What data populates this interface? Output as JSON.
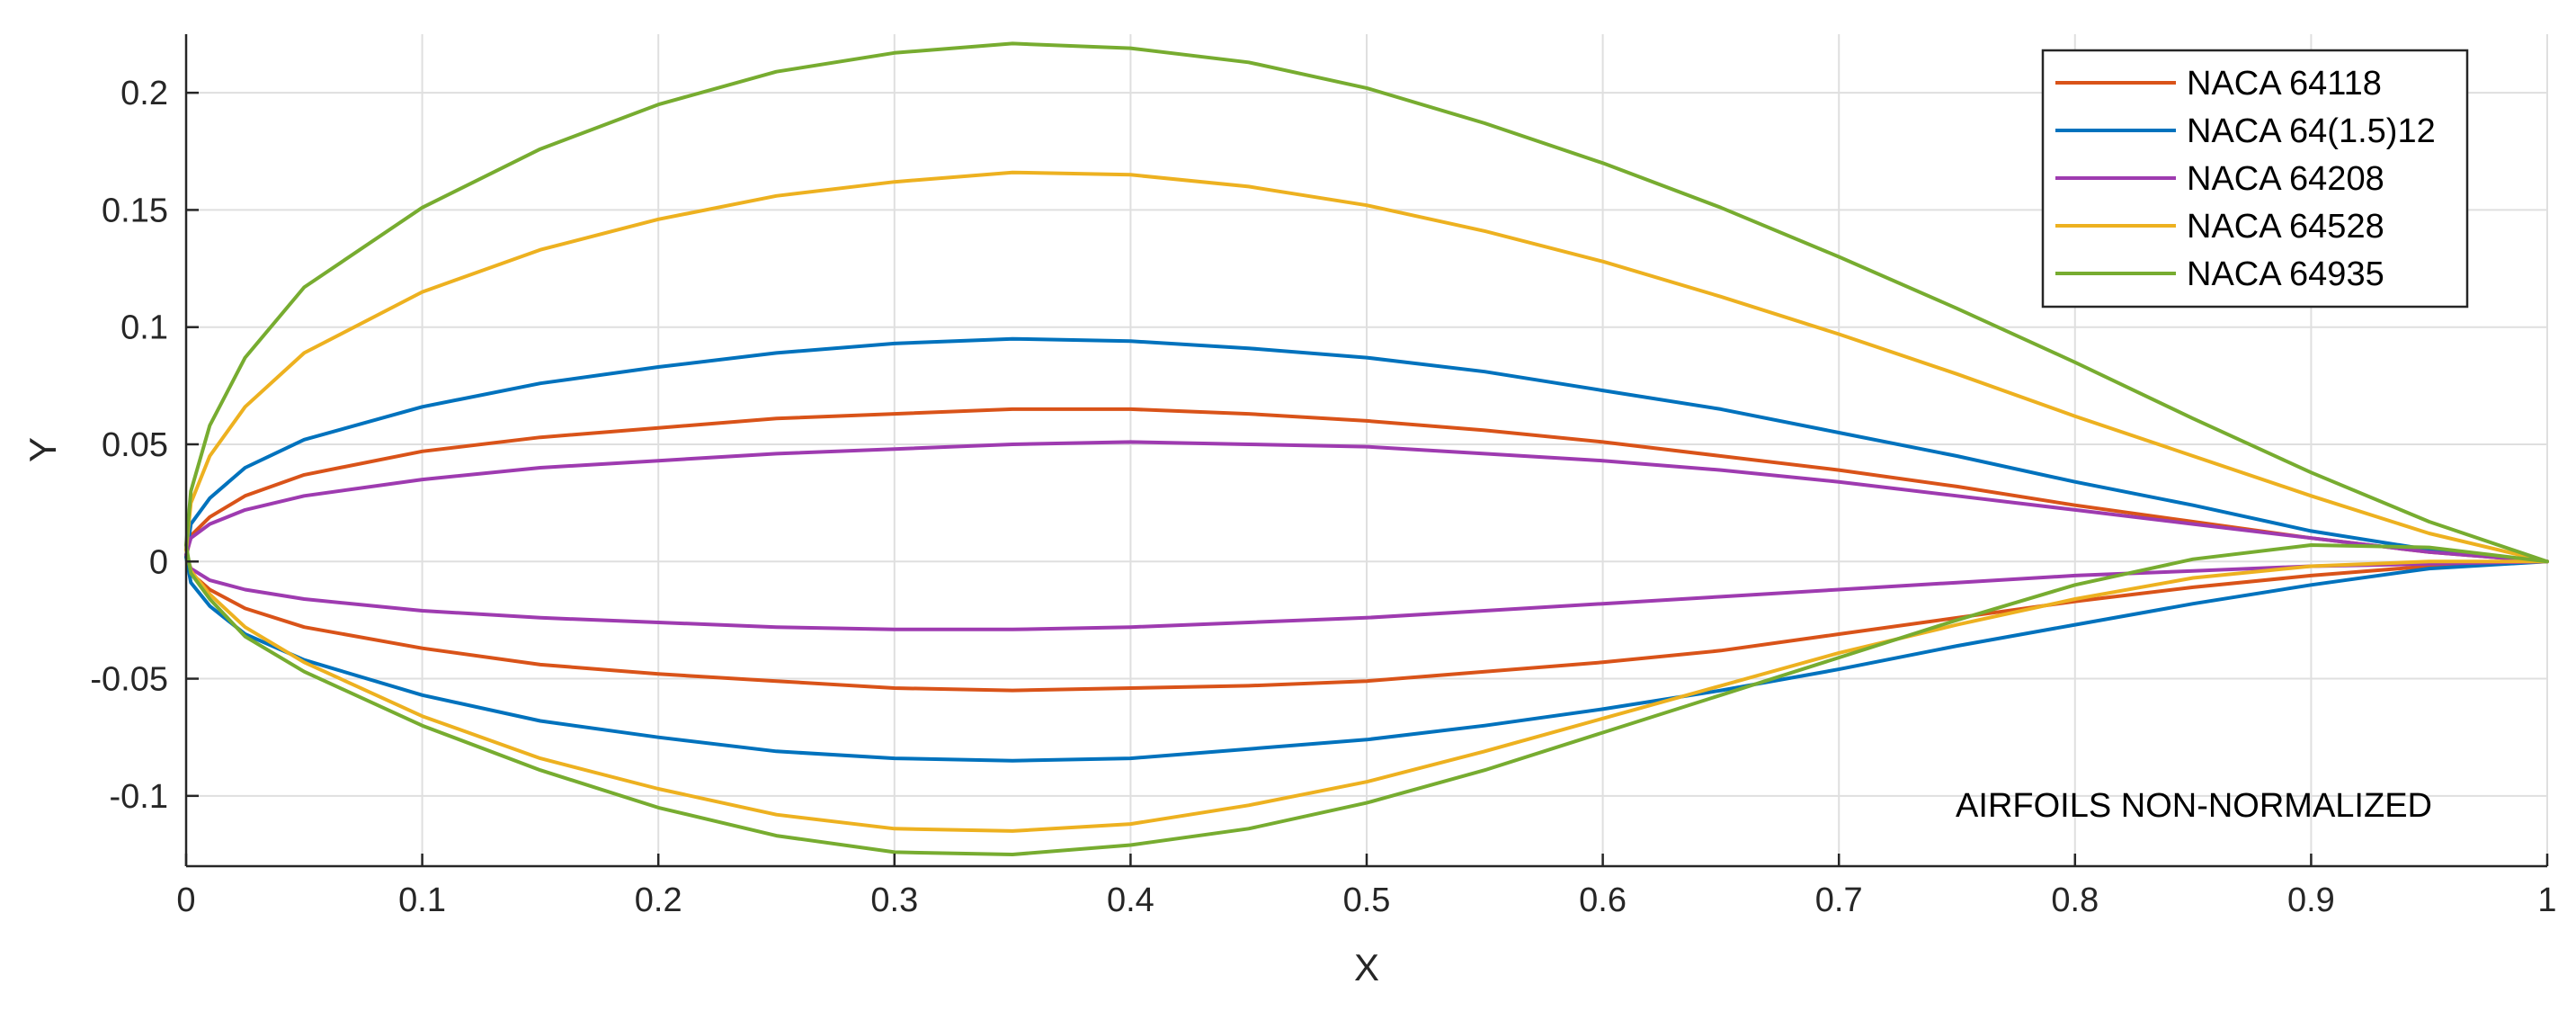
{
  "chart_data": {
    "type": "line",
    "title": "",
    "xlabel": "X",
    "ylabel": "Y",
    "xlim": [
      0,
      1
    ],
    "ylim": [
      -0.13,
      0.225
    ],
    "xticks": [
      0,
      0.1,
      0.2,
      0.3,
      0.4,
      0.5,
      0.6,
      0.7,
      0.8,
      0.9,
      1
    ],
    "xtick_labels": [
      "0",
      "0.1",
      "0.2",
      "0.3",
      "0.4",
      "0.5",
      "0.6",
      "0.7",
      "0.8",
      "0.9",
      "1"
    ],
    "yticks": [
      -0.1,
      -0.05,
      0,
      0.05,
      0.1,
      0.15,
      0.2
    ],
    "ytick_labels": [
      "-0.1",
      "-0.05",
      "0",
      "0.05",
      "0.1",
      "0.15",
      "0.2"
    ],
    "grid": true,
    "legend_position": "top-right",
    "annotation": "AIRFOILS NON-NORMALIZED",
    "series": [
      {
        "name": "NACA 64118",
        "color": "#D95319",
        "x": [
          0,
          0.002,
          0.01,
          0.025,
          0.05,
          0.1,
          0.15,
          0.2,
          0.25,
          0.3,
          0.35,
          0.4,
          0.45,
          0.5,
          0.55,
          0.6,
          0.65,
          0.7,
          0.75,
          0.8,
          0.85,
          0.9,
          0.95,
          1,
          0.95,
          0.9,
          0.85,
          0.8,
          0.75,
          0.7,
          0.65,
          0.6,
          0.55,
          0.5,
          0.45,
          0.4,
          0.35,
          0.3,
          0.25,
          0.2,
          0.15,
          0.1,
          0.05,
          0.025,
          0.01,
          0.002,
          0
        ],
        "y": [
          0.002,
          0.011,
          0.019,
          0.028,
          0.037,
          0.047,
          0.053,
          0.057,
          0.061,
          0.063,
          0.065,
          0.065,
          0.063,
          0.06,
          0.056,
          0.051,
          0.045,
          0.039,
          0.032,
          0.024,
          0.017,
          0.01,
          0.004,
          0,
          -0.002,
          -0.006,
          -0.011,
          -0.017,
          -0.024,
          -0.031,
          -0.038,
          -0.043,
          -0.047,
          -0.051,
          -0.053,
          -0.054,
          -0.055,
          -0.054,
          -0.051,
          -0.048,
          -0.044,
          -0.037,
          -0.028,
          -0.02,
          -0.012,
          -0.005,
          0.002
        ]
      },
      {
        "name": "NACA 64(1.5)12",
        "color": "#0072BD",
        "x": [
          0,
          0.002,
          0.01,
          0.025,
          0.05,
          0.1,
          0.15,
          0.2,
          0.25,
          0.3,
          0.35,
          0.4,
          0.45,
          0.5,
          0.55,
          0.6,
          0.65,
          0.7,
          0.75,
          0.8,
          0.85,
          0.9,
          0.95,
          1,
          0.95,
          0.9,
          0.85,
          0.8,
          0.75,
          0.7,
          0.65,
          0.6,
          0.55,
          0.5,
          0.45,
          0.4,
          0.35,
          0.3,
          0.25,
          0.2,
          0.15,
          0.1,
          0.05,
          0.025,
          0.01,
          0.002,
          0
        ],
        "y": [
          0.002,
          0.016,
          0.027,
          0.04,
          0.052,
          0.066,
          0.076,
          0.083,
          0.089,
          0.093,
          0.095,
          0.094,
          0.091,
          0.087,
          0.081,
          0.073,
          0.065,
          0.055,
          0.045,
          0.034,
          0.024,
          0.013,
          0.005,
          0,
          -0.003,
          -0.01,
          -0.018,
          -0.027,
          -0.036,
          -0.046,
          -0.055,
          -0.063,
          -0.07,
          -0.076,
          -0.08,
          -0.084,
          -0.085,
          -0.084,
          -0.081,
          -0.075,
          -0.068,
          -0.057,
          -0.042,
          -0.031,
          -0.019,
          -0.009,
          0.002
        ]
      },
      {
        "name": "NACA 64208",
        "color": "#9E3BB0",
        "x": [
          0,
          0.002,
          0.01,
          0.025,
          0.05,
          0.1,
          0.15,
          0.2,
          0.25,
          0.3,
          0.35,
          0.4,
          0.45,
          0.5,
          0.55,
          0.6,
          0.65,
          0.7,
          0.75,
          0.8,
          0.85,
          0.9,
          0.95,
          1,
          0.95,
          0.9,
          0.85,
          0.8,
          0.75,
          0.7,
          0.65,
          0.6,
          0.55,
          0.5,
          0.45,
          0.4,
          0.35,
          0.3,
          0.25,
          0.2,
          0.15,
          0.1,
          0.05,
          0.025,
          0.01,
          0.002,
          0
        ],
        "y": [
          0.003,
          0.01,
          0.016,
          0.022,
          0.028,
          0.035,
          0.04,
          0.043,
          0.046,
          0.048,
          0.05,
          0.051,
          0.05,
          0.049,
          0.046,
          0.043,
          0.039,
          0.034,
          0.028,
          0.022,
          0.016,
          0.01,
          0.004,
          0,
          -0.001,
          -0.002,
          -0.004,
          -0.006,
          -0.009,
          -0.012,
          -0.015,
          -0.018,
          -0.021,
          -0.024,
          -0.026,
          -0.028,
          -0.029,
          -0.029,
          -0.028,
          -0.026,
          -0.024,
          -0.021,
          -0.016,
          -0.012,
          -0.008,
          -0.003,
          0.003
        ]
      },
      {
        "name": "NACA 64528",
        "color": "#EDB120",
        "x": [
          0,
          0.002,
          0.01,
          0.025,
          0.05,
          0.1,
          0.15,
          0.2,
          0.25,
          0.3,
          0.35,
          0.4,
          0.45,
          0.5,
          0.55,
          0.6,
          0.65,
          0.7,
          0.75,
          0.8,
          0.85,
          0.9,
          0.95,
          1,
          0.95,
          0.9,
          0.85,
          0.8,
          0.75,
          0.7,
          0.65,
          0.6,
          0.55,
          0.5,
          0.45,
          0.4,
          0.35,
          0.3,
          0.25,
          0.2,
          0.15,
          0.1,
          0.05,
          0.025,
          0.01,
          0.002,
          0
        ],
        "y": [
          0.005,
          0.025,
          0.045,
          0.066,
          0.089,
          0.115,
          0.133,
          0.146,
          0.156,
          0.162,
          0.166,
          0.165,
          0.16,
          0.152,
          0.141,
          0.128,
          0.113,
          0.097,
          0.08,
          0.062,
          0.045,
          0.028,
          0.012,
          0,
          0,
          -0.002,
          -0.007,
          -0.016,
          -0.027,
          -0.039,
          -0.053,
          -0.067,
          -0.081,
          -0.094,
          -0.104,
          -0.112,
          -0.115,
          -0.114,
          -0.108,
          -0.097,
          -0.084,
          -0.066,
          -0.043,
          -0.028,
          -0.014,
          -0.004,
          0.005
        ]
      },
      {
        "name": "NACA 64935",
        "color": "#77AC30",
        "x": [
          0,
          0.002,
          0.01,
          0.025,
          0.05,
          0.1,
          0.15,
          0.2,
          0.25,
          0.3,
          0.35,
          0.4,
          0.45,
          0.5,
          0.55,
          0.6,
          0.65,
          0.7,
          0.75,
          0.8,
          0.85,
          0.9,
          0.95,
          1,
          0.95,
          0.9,
          0.85,
          0.8,
          0.75,
          0.7,
          0.65,
          0.6,
          0.55,
          0.5,
          0.45,
          0.4,
          0.35,
          0.3,
          0.25,
          0.2,
          0.15,
          0.1,
          0.05,
          0.025,
          0.01,
          0.002,
          0
        ],
        "y": [
          0.007,
          0.03,
          0.058,
          0.087,
          0.117,
          0.151,
          0.176,
          0.195,
          0.209,
          0.217,
          0.221,
          0.219,
          0.213,
          0.202,
          0.187,
          0.17,
          0.151,
          0.13,
          0.108,
          0.085,
          0.061,
          0.038,
          0.017,
          0,
          0.006,
          0.007,
          0.001,
          -0.01,
          -0.025,
          -0.041,
          -0.057,
          -0.073,
          -0.089,
          -0.103,
          -0.114,
          -0.121,
          -0.125,
          -0.124,
          -0.117,
          -0.105,
          -0.089,
          -0.07,
          -0.047,
          -0.032,
          -0.016,
          -0.005,
          0.007
        ]
      }
    ]
  }
}
